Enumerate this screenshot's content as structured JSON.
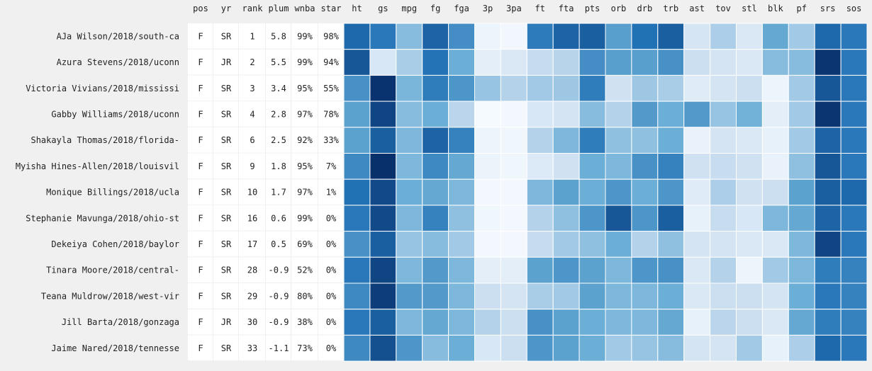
{
  "chart_data": {
    "type": "heatmap",
    "text_columns": [
      "pos",
      "yr",
      "rank",
      "plum",
      "wnba",
      "star"
    ],
    "heat_columns": [
      "ht",
      "gs",
      "mpg",
      "fg",
      "fga",
      "3p",
      "3pa",
      "ft",
      "fta",
      "pts",
      "orb",
      "drb",
      "trb",
      "ast",
      "tov",
      "stl",
      "blk",
      "pf",
      "srs",
      "sos"
    ],
    "color_scale": {
      "low": "#f7fbff",
      "high": "#08306b",
      "scheme": "Blues",
      "range": [
        0,
        1
      ]
    },
    "rows": [
      {
        "name": "AJa Wilson/2018/south-ca",
        "pos": "F",
        "yr": "SR",
        "rank": "1",
        "plum": "5.8",
        "wnba": "99%",
        "star": "98%",
        "values": [
          0.78,
          0.72,
          0.42,
          0.8,
          0.63,
          0.05,
          0.03,
          0.71,
          0.8,
          0.82,
          0.56,
          0.75,
          0.82,
          0.17,
          0.32,
          0.15,
          0.52,
          0.35,
          0.78,
          0.72
        ]
      },
      {
        "name": "Azura Stevens/2018/uconn",
        "pos": "F",
        "yr": "JR",
        "rank": "2",
        "plum": "5.5",
        "wnba": "99%",
        "star": "94%",
        "values": [
          0.85,
          0.16,
          0.33,
          0.74,
          0.5,
          0.1,
          0.15,
          0.25,
          0.29,
          0.63,
          0.56,
          0.56,
          0.62,
          0.22,
          0.18,
          0.15,
          0.42,
          0.42,
          0.98,
          0.72
        ]
      },
      {
        "name": "Victoria Vivians/2018/mississi",
        "pos": "F",
        "yr": "SR",
        "rank": "3",
        "plum": "3.4",
        "wnba": "95%",
        "star": "55%",
        "values": [
          0.62,
          0.99,
          0.46,
          0.7,
          0.6,
          0.38,
          0.3,
          0.35,
          0.36,
          0.7,
          0.2,
          0.36,
          0.33,
          0.12,
          0.18,
          0.22,
          0.05,
          0.35,
          0.85,
          0.72
        ]
      },
      {
        "name": "Gabby Williams/2018/uconn",
        "pos": "F",
        "yr": "SR",
        "rank": "4",
        "plum": "2.8",
        "wnba": "97%",
        "star": "78%",
        "values": [
          0.55,
          0.92,
          0.42,
          0.5,
          0.28,
          0.01,
          0.02,
          0.16,
          0.18,
          0.42,
          0.3,
          0.58,
          0.5,
          0.58,
          0.38,
          0.48,
          0.1,
          0.35,
          0.98,
          0.72
        ]
      },
      {
        "name": "Shakayla Thomas/2018/florida-",
        "pos": "F",
        "yr": "SR",
        "rank": "6",
        "plum": "2.5",
        "wnba": "92%",
        "star": "33%",
        "values": [
          0.55,
          0.82,
          0.45,
          0.8,
          0.68,
          0.05,
          0.04,
          0.3,
          0.45,
          0.7,
          0.4,
          0.4,
          0.5,
          0.07,
          0.18,
          0.15,
          0.08,
          0.35,
          0.8,
          0.72
        ]
      },
      {
        "name": "Myisha Hines-Allen/2018/louisvil",
        "pos": "F",
        "yr": "SR",
        "rank": "9",
        "plum": "1.8",
        "wnba": "95%",
        "star": "7%",
        "values": [
          0.65,
          1.0,
          0.45,
          0.65,
          0.52,
          0.06,
          0.04,
          0.14,
          0.2,
          0.5,
          0.45,
          0.62,
          0.68,
          0.2,
          0.24,
          0.2,
          0.07,
          0.4,
          0.85,
          0.72
        ]
      },
      {
        "name": "Monique Billings/2018/ucla",
        "pos": "F",
        "yr": "SR",
        "rank": "10",
        "plum": "1.7",
        "wnba": "97%",
        "star": "1%",
        "values": [
          0.75,
          0.9,
          0.5,
          0.52,
          0.45,
          0.02,
          0.02,
          0.45,
          0.55,
          0.5,
          0.6,
          0.5,
          0.6,
          0.12,
          0.32,
          0.2,
          0.22,
          0.55,
          0.82,
          0.78
        ]
      },
      {
        "name": "Stephanie Mavunga/2018/ohio-st",
        "pos": "F",
        "yr": "SR",
        "rank": "16",
        "plum": "0.6",
        "wnba": "99%",
        "star": "0%",
        "values": [
          0.72,
          0.9,
          0.45,
          0.68,
          0.4,
          0.04,
          0.02,
          0.3,
          0.4,
          0.6,
          0.85,
          0.6,
          0.82,
          0.08,
          0.24,
          0.16,
          0.45,
          0.52,
          0.8,
          0.72
        ]
      },
      {
        "name": "Dekeiya Cohen/2018/baylor",
        "pos": "F",
        "yr": "SR",
        "rank": "17",
        "plum": "0.5",
        "wnba": "69%",
        "star": "0%",
        "values": [
          0.62,
          0.82,
          0.38,
          0.42,
          0.35,
          0.02,
          0.02,
          0.25,
          0.35,
          0.4,
          0.5,
          0.3,
          0.4,
          0.18,
          0.18,
          0.15,
          0.15,
          0.45,
          0.92,
          0.72
        ]
      },
      {
        "name": "Tinara Moore/2018/central-",
        "pos": "F",
        "yr": "SR",
        "rank": "28",
        "plum": "-0.9",
        "wnba": "52%",
        "star": "0%",
        "values": [
          0.72,
          0.92,
          0.45,
          0.58,
          0.45,
          0.1,
          0.1,
          0.55,
          0.6,
          0.55,
          0.45,
          0.6,
          0.62,
          0.15,
          0.3,
          0.05,
          0.35,
          0.45,
          0.7,
          0.68
        ]
      },
      {
        "name": "Teana Muldrow/2018/west-vir",
        "pos": "F",
        "yr": "SR",
        "rank": "29",
        "plum": "-0.9",
        "wnba": "80%",
        "star": "0%",
        "values": [
          0.65,
          0.95,
          0.58,
          0.58,
          0.45,
          0.22,
          0.18,
          0.33,
          0.35,
          0.55,
          0.45,
          0.45,
          0.5,
          0.15,
          0.22,
          0.22,
          0.18,
          0.5,
          0.72,
          0.68
        ]
      },
      {
        "name": "Jill Barta/2018/gonzaga",
        "pos": "F",
        "yr": "JR",
        "rank": "30",
        "plum": "-0.9",
        "wnba": "38%",
        "star": "0%",
        "values": [
          0.72,
          0.82,
          0.45,
          0.52,
          0.45,
          0.3,
          0.22,
          0.62,
          0.55,
          0.5,
          0.45,
          0.45,
          0.52,
          0.08,
          0.28,
          0.22,
          0.15,
          0.52,
          0.7,
          0.68
        ]
      },
      {
        "name": "Jaime Nared/2018/tennesse",
        "pos": "F",
        "yr": "SR",
        "rank": "33",
        "plum": "-1.1",
        "wnba": "73%",
        "star": "0%",
        "values": [
          0.65,
          0.88,
          0.6,
          0.42,
          0.5,
          0.16,
          0.22,
          0.6,
          0.55,
          0.5,
          0.35,
          0.38,
          0.42,
          0.18,
          0.18,
          0.35,
          0.08,
          0.32,
          0.78,
          0.72
        ]
      }
    ]
  }
}
